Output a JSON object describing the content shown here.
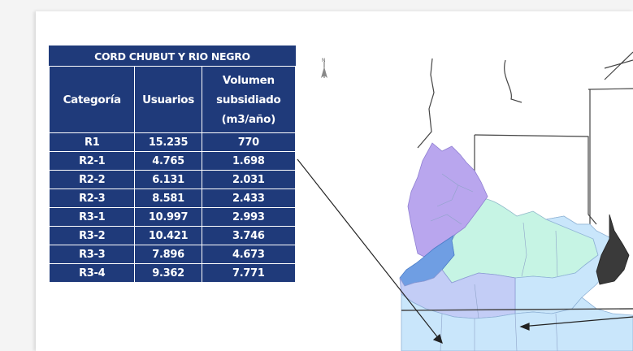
{
  "table": {
    "title": "CORD CHUBUT Y RIO NEGRO",
    "headers": {
      "category": "Categoría",
      "users": "Usuarios",
      "volume_line1": "Volumen",
      "volume_line2": "subsidiado",
      "volume_line3": "(m3/año)"
    },
    "rows": [
      {
        "category": "R1",
        "users": "15.235",
        "volume": "770"
      },
      {
        "category": "R2-1",
        "users": "4.765",
        "volume": "1.698"
      },
      {
        "category": "R2-2",
        "users": "6.131",
        "volume": "2.031"
      },
      {
        "category": "R2-3",
        "users": "8.581",
        "volume": "2.433"
      },
      {
        "category": "R3-1",
        "users": "10.997",
        "volume": "2.993"
      },
      {
        "category": "R3-2",
        "users": "10.421",
        "volume": "3.746"
      },
      {
        "category": "R3-3",
        "users": "7.896",
        "volume": "4.673"
      },
      {
        "category": "R3-4",
        "users": "9.362",
        "volume": "7.771"
      }
    ]
  },
  "colors": {
    "table_fill": "#1f3a7a",
    "region_purple": "#b9a6ee",
    "region_blue": "#6f9ee3",
    "region_mint": "#c6f4e4",
    "region_lightblue": "#c9e6fb",
    "region_lavender": "#c3cdf6",
    "region_dark": "#3a3a3a"
  },
  "map": {
    "north_arrow_icon": "north-arrow-icon"
  }
}
